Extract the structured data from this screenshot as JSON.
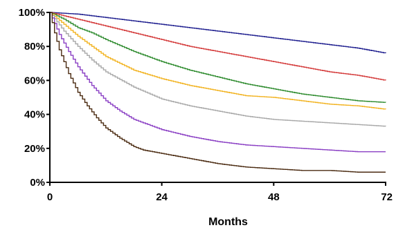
{
  "chart_data": {
    "type": "line",
    "title": "",
    "xlabel": "Months",
    "ylabel": "",
    "xlim": [
      0,
      72
    ],
    "ylim": [
      0,
      100
    ],
    "x_ticks": [
      0,
      24,
      48,
      72
    ],
    "x_tick_labels": [
      "0",
      "24",
      "48",
      "72"
    ],
    "y_ticks": [
      0,
      20,
      40,
      60,
      80,
      100
    ],
    "y_tick_labels": [
      "0%",
      "20%",
      "40%",
      "60%",
      "80%",
      "100%"
    ],
    "grid": false,
    "legend": "none",
    "step": true,
    "series": [
      {
        "color": "#1f1f8f",
        "x": [
          0,
          6,
          12,
          18,
          24,
          30,
          36,
          42,
          48,
          54,
          60,
          66,
          72
        ],
        "values": [
          100,
          99,
          97,
          95,
          93,
          91,
          89,
          87,
          85,
          83,
          81,
          79,
          76
        ]
      },
      {
        "color": "#d43a3a",
        "x": [
          0,
          6,
          12,
          18,
          24,
          30,
          36,
          42,
          48,
          54,
          60,
          66,
          72
        ],
        "values": [
          100,
          96,
          92,
          88,
          84,
          80,
          77,
          74,
          71,
          68,
          65,
          63,
          60
        ]
      },
      {
        "color": "#2e8b2e",
        "x": [
          0,
          3,
          6,
          9,
          12,
          18,
          24,
          30,
          36,
          42,
          48,
          54,
          60,
          66,
          72
        ],
        "values": [
          100,
          96,
          91,
          88,
          84,
          77,
          71,
          66,
          62,
          58,
          55,
          52,
          50,
          48,
          47
        ]
      },
      {
        "color": "#f2b320",
        "x": [
          0,
          3,
          6,
          9,
          12,
          18,
          24,
          30,
          36,
          42,
          48,
          54,
          60,
          66,
          72
        ],
        "values": [
          100,
          93,
          86,
          80,
          74,
          66,
          61,
          57,
          54,
          51,
          50,
          48,
          46,
          45,
          43
        ]
      },
      {
        "color": "#a8a8a8",
        "x": [
          0,
          3,
          6,
          9,
          12,
          18,
          24,
          30,
          36,
          42,
          48,
          54,
          60,
          66,
          72
        ],
        "values": [
          100,
          89,
          80,
          72,
          65,
          56,
          49,
          45,
          42,
          39,
          37,
          36,
          35,
          34,
          33
        ]
      },
      {
        "color": "#8a3fc4",
        "x": [
          0,
          2,
          4,
          6,
          9,
          12,
          15,
          18,
          24,
          30,
          36,
          42,
          48,
          54,
          60,
          66,
          72
        ],
        "values": [
          100,
          87,
          77,
          68,
          57,
          48,
          42,
          37,
          31,
          27,
          24,
          22,
          21,
          20,
          19,
          18,
          18
        ]
      },
      {
        "color": "#4a2a10",
        "x": [
          0,
          1,
          2,
          4,
          6,
          8,
          10,
          12,
          15,
          18,
          20,
          24,
          30,
          36,
          42,
          48,
          54,
          60,
          66,
          72
        ],
        "values": [
          100,
          88,
          78,
          64,
          53,
          45,
          38,
          32,
          26,
          21,
          19,
          17,
          14,
          11,
          9,
          8,
          7,
          7,
          6,
          6
        ]
      }
    ]
  }
}
